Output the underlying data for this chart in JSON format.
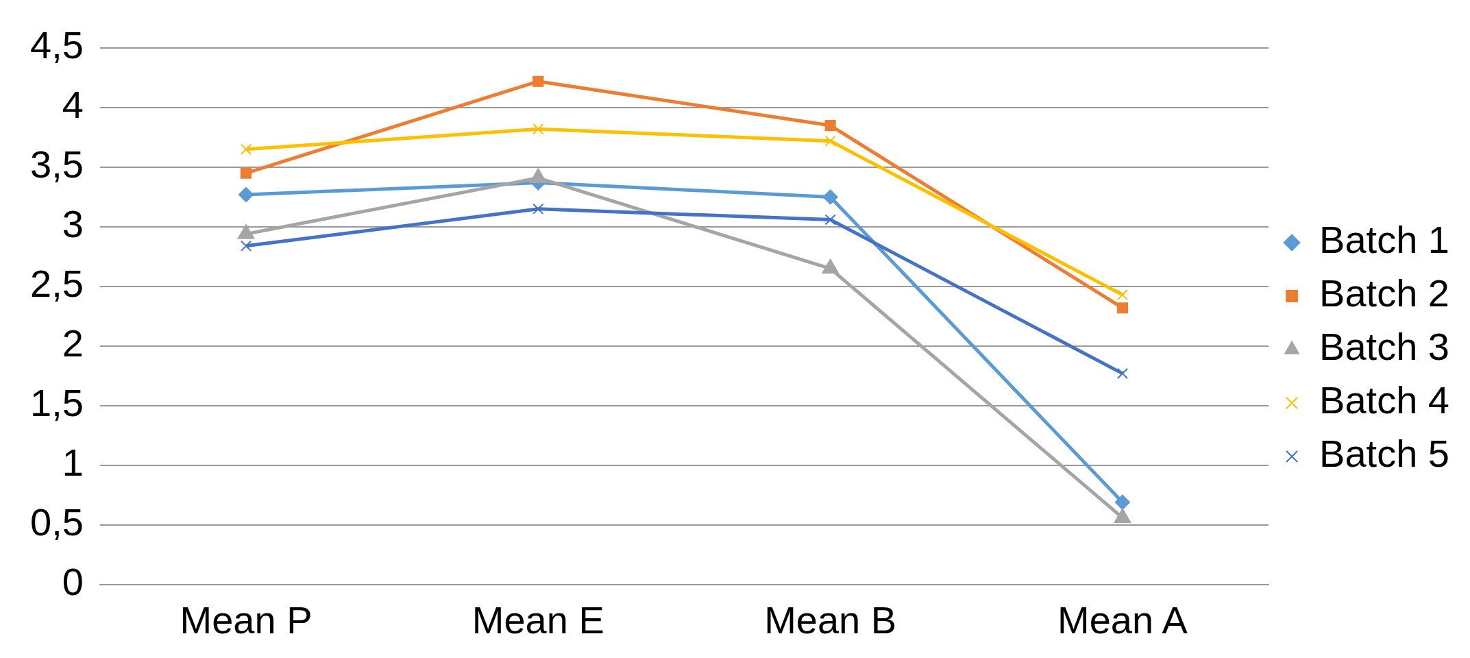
{
  "chart_data": {
    "type": "line",
    "categories": [
      "Mean P",
      "Mean E",
      "Mean B",
      "Mean A"
    ],
    "series": [
      {
        "name": "Batch 1",
        "color": "#5b9bd5",
        "marker": "diamond",
        "values": [
          3.27,
          3.37,
          3.25,
          0.69
        ]
      },
      {
        "name": "Batch 2",
        "color": "#ed7d31",
        "marker": "square",
        "values": [
          3.45,
          4.22,
          3.85,
          2.32
        ]
      },
      {
        "name": "Batch 3",
        "color": "#a5a5a5",
        "marker": "triangle",
        "values": [
          2.94,
          3.41,
          2.65,
          0.56
        ]
      },
      {
        "name": "Batch 4",
        "color": "#ffc000",
        "marker": "cross",
        "values": [
          3.65,
          3.82,
          3.72,
          2.43
        ]
      },
      {
        "name": "Batch 5",
        "color": "#4472c4",
        "marker": "cross",
        "values": [
          2.84,
          3.15,
          3.06,
          1.77
        ]
      }
    ],
    "ylim": [
      0,
      4.5
    ],
    "yticks": [
      0,
      {
        "value": 0.5,
        "label": "0,5"
      },
      1,
      {
        "value": 1.5,
        "label": "1,5"
      },
      2,
      {
        "value": 2.5,
        "label": "2,5"
      },
      3,
      {
        "value": 3.5,
        "label": "3,5"
      },
      4,
      {
        "value": 4.5,
        "label": "4,5"
      }
    ],
    "grid": "y",
    "legend": "right",
    "line_style": "solid"
  }
}
